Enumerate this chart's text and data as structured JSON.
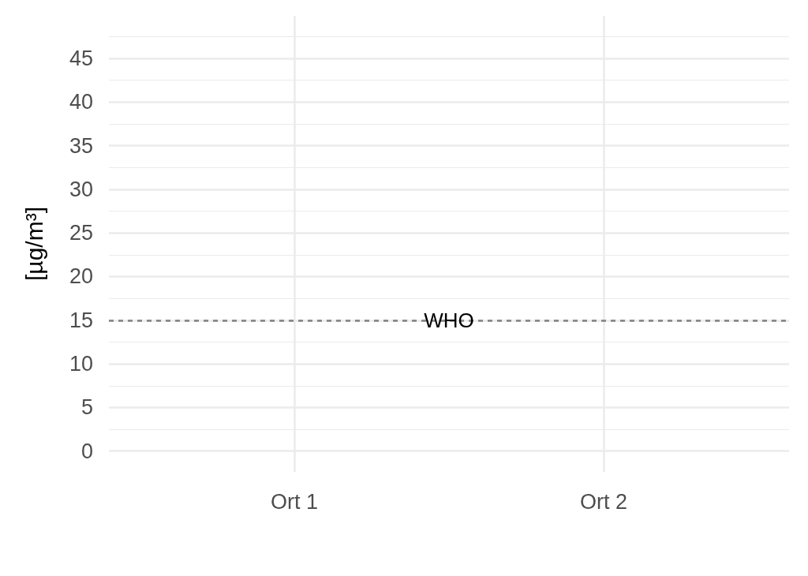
{
  "chart_data": {
    "type": "bar",
    "categories": [
      "Ort 1",
      "Ort 2"
    ],
    "values": [
      null,
      null
    ],
    "ylabel": "[µg/m³]",
    "ylim": [
      -2.375,
      49.875
    ],
    "yticks": [
      0,
      {
        "value": 2.5,
        "label": null
      },
      5,
      {
        "value": 7.5,
        "label": null
      },
      10,
      {
        "value": 12.5,
        "label": null
      },
      15,
      {
        "value": 17.5,
        "label": null
      },
      20,
      {
        "value": 22.5,
        "label": null
      },
      25,
      {
        "value": 27.5,
        "label": null
      },
      30,
      {
        "value": 32.5,
        "label": null
      },
      35,
      {
        "value": 37.5,
        "label": null
      },
      40,
      {
        "value": 42.5,
        "label": null
      },
      45,
      {
        "value": 47.5,
        "label": null
      }
    ],
    "grid": true,
    "ref_lines": [
      {
        "axis": "y",
        "value": 15,
        "label": "WHO",
        "color": "#7f7f7f",
        "line_style": "dashed"
      }
    ]
  }
}
